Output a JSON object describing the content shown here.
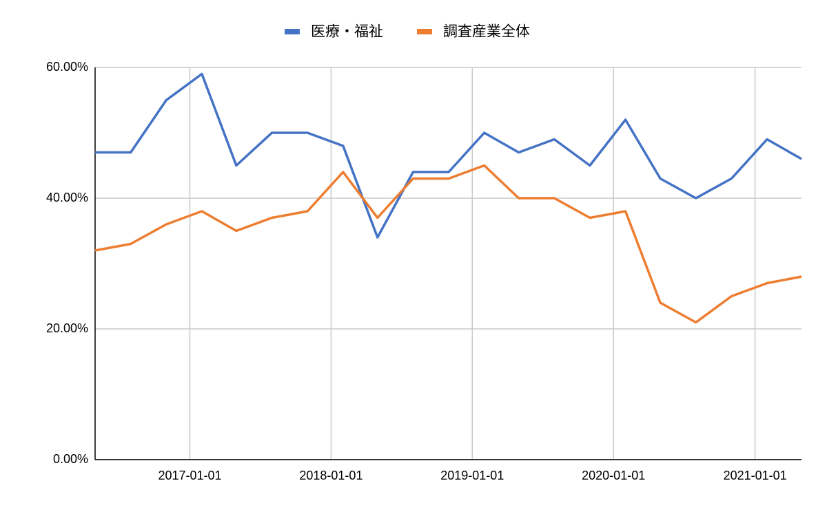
{
  "chart_data": {
    "type": "line",
    "x": [
      "2016-05-01",
      "2016-08-01",
      "2016-11-01",
      "2017-02-01",
      "2017-05-01",
      "2017-08-01",
      "2017-11-01",
      "2018-02-01",
      "2018-05-01",
      "2018-08-01",
      "2018-11-01",
      "2019-02-01",
      "2019-05-01",
      "2019-08-01",
      "2019-11-01",
      "2020-02-01",
      "2020-05-01",
      "2020-08-01",
      "2020-11-01",
      "2021-02-01",
      "2021-05-01"
    ],
    "series": [
      {
        "name": "医療・福祉",
        "color": "#4472c4",
        "values": [
          47,
          47,
          55,
          59,
          45,
          50,
          50,
          48,
          34,
          44,
          44,
          50,
          47,
          49,
          45,
          52,
          43,
          40,
          43,
          49,
          46
        ]
      },
      {
        "name": "調査産業全体",
        "color": "#ed7d31",
        "values": [
          32,
          33,
          36,
          38,
          35,
          37,
          38,
          44,
          37,
          43,
          43,
          45,
          40,
          40,
          37,
          38,
          24,
          21,
          25,
          27,
          28
        ]
      }
    ],
    "xlim": [
      "2016-05-01",
      "2021-05-01"
    ],
    "xticks": [
      "2017-01-01",
      "2018-01-01",
      "2019-01-01",
      "2020-01-01",
      "2021-01-01"
    ],
    "ylim": [
      0,
      60
    ],
    "yticks": [
      {
        "value": 0,
        "label": "0.00%"
      },
      {
        "value": 20,
        "label": "20.00%"
      },
      {
        "value": 40,
        "label": "40.00%"
      },
      {
        "value": 60,
        "label": "60.00%"
      }
    ],
    "grid": true,
    "legend": "top"
  }
}
